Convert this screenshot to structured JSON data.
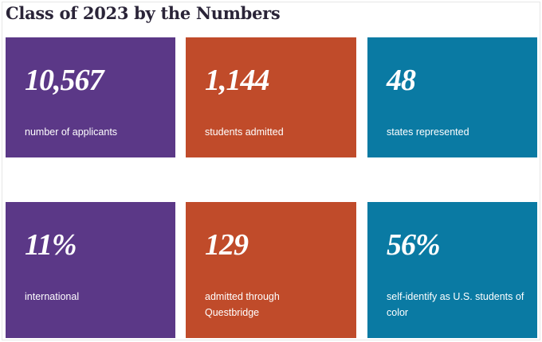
{
  "title": "Class of 2023 by the Numbers",
  "stats": [
    {
      "value": "10,567",
      "label": "number of applicants",
      "color": "#5b3887"
    },
    {
      "value": "1,144",
      "label": "students admitted",
      "color": "#c04b2a"
    },
    {
      "value": "48",
      "label": "states represented",
      "color": "#0a7aa3"
    },
    {
      "value": "11%",
      "label": "international",
      "color": "#5b3887"
    },
    {
      "value": "129",
      "label": "admitted through Questbridge",
      "color": "#c04b2a"
    },
    {
      "value": "56%",
      "label": "self-identify as U.S. students of color",
      "color": "#0a7aa3"
    }
  ]
}
